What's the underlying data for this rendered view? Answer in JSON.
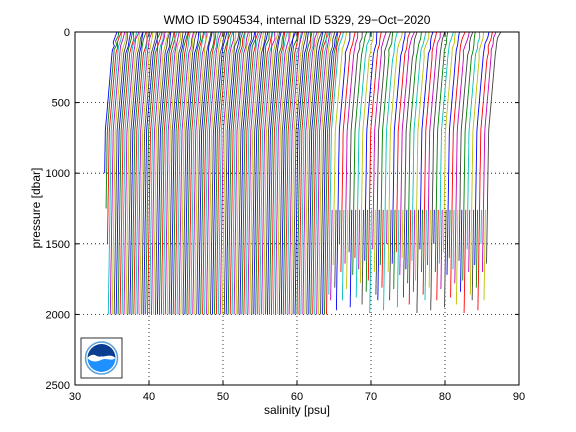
{
  "chart_data": {
    "type": "line",
    "title": "WMO ID 5904534, internal ID 5329, 29−Oct−2020",
    "xlabel": "salinity [psu]",
    "ylabel": "pressure [dbar]",
    "xlim": [
      30,
      90
    ],
    "ylim": [
      0,
      2500
    ],
    "y_reversed": true,
    "xticks": [
      "30",
      "40",
      "50",
      "60",
      "70",
      "80",
      "90"
    ],
    "yticks": [
      "0",
      "500",
      "1000",
      "1500",
      "2000",
      "2500"
    ],
    "grid": true,
    "series_colors": [
      "#0000ff",
      "#008000",
      "#ff0000",
      "#00bfbf",
      "#bf00bf",
      "#bfbf00",
      "#404040"
    ],
    "profiles": {
      "count": 196,
      "first_offset_psu": 34.6,
      "last_offset_psu": 86.4,
      "full_depth_dbar": 2000,
      "short_profile_depths_dbar": [
        1500,
        1700,
        1900,
        1640,
        1820,
        1560,
        1950,
        1720,
        1600,
        1880,
        1680,
        1780,
        1930,
        1620,
        1840,
        1760,
        1990,
        1540,
        1700,
        1860,
        1900,
        1650,
        1810,
        1970
      ],
      "short_profile_start_psu": 65.0,
      "surface_start_dbar": 1260
    },
    "logo": "noaa-logo"
  }
}
